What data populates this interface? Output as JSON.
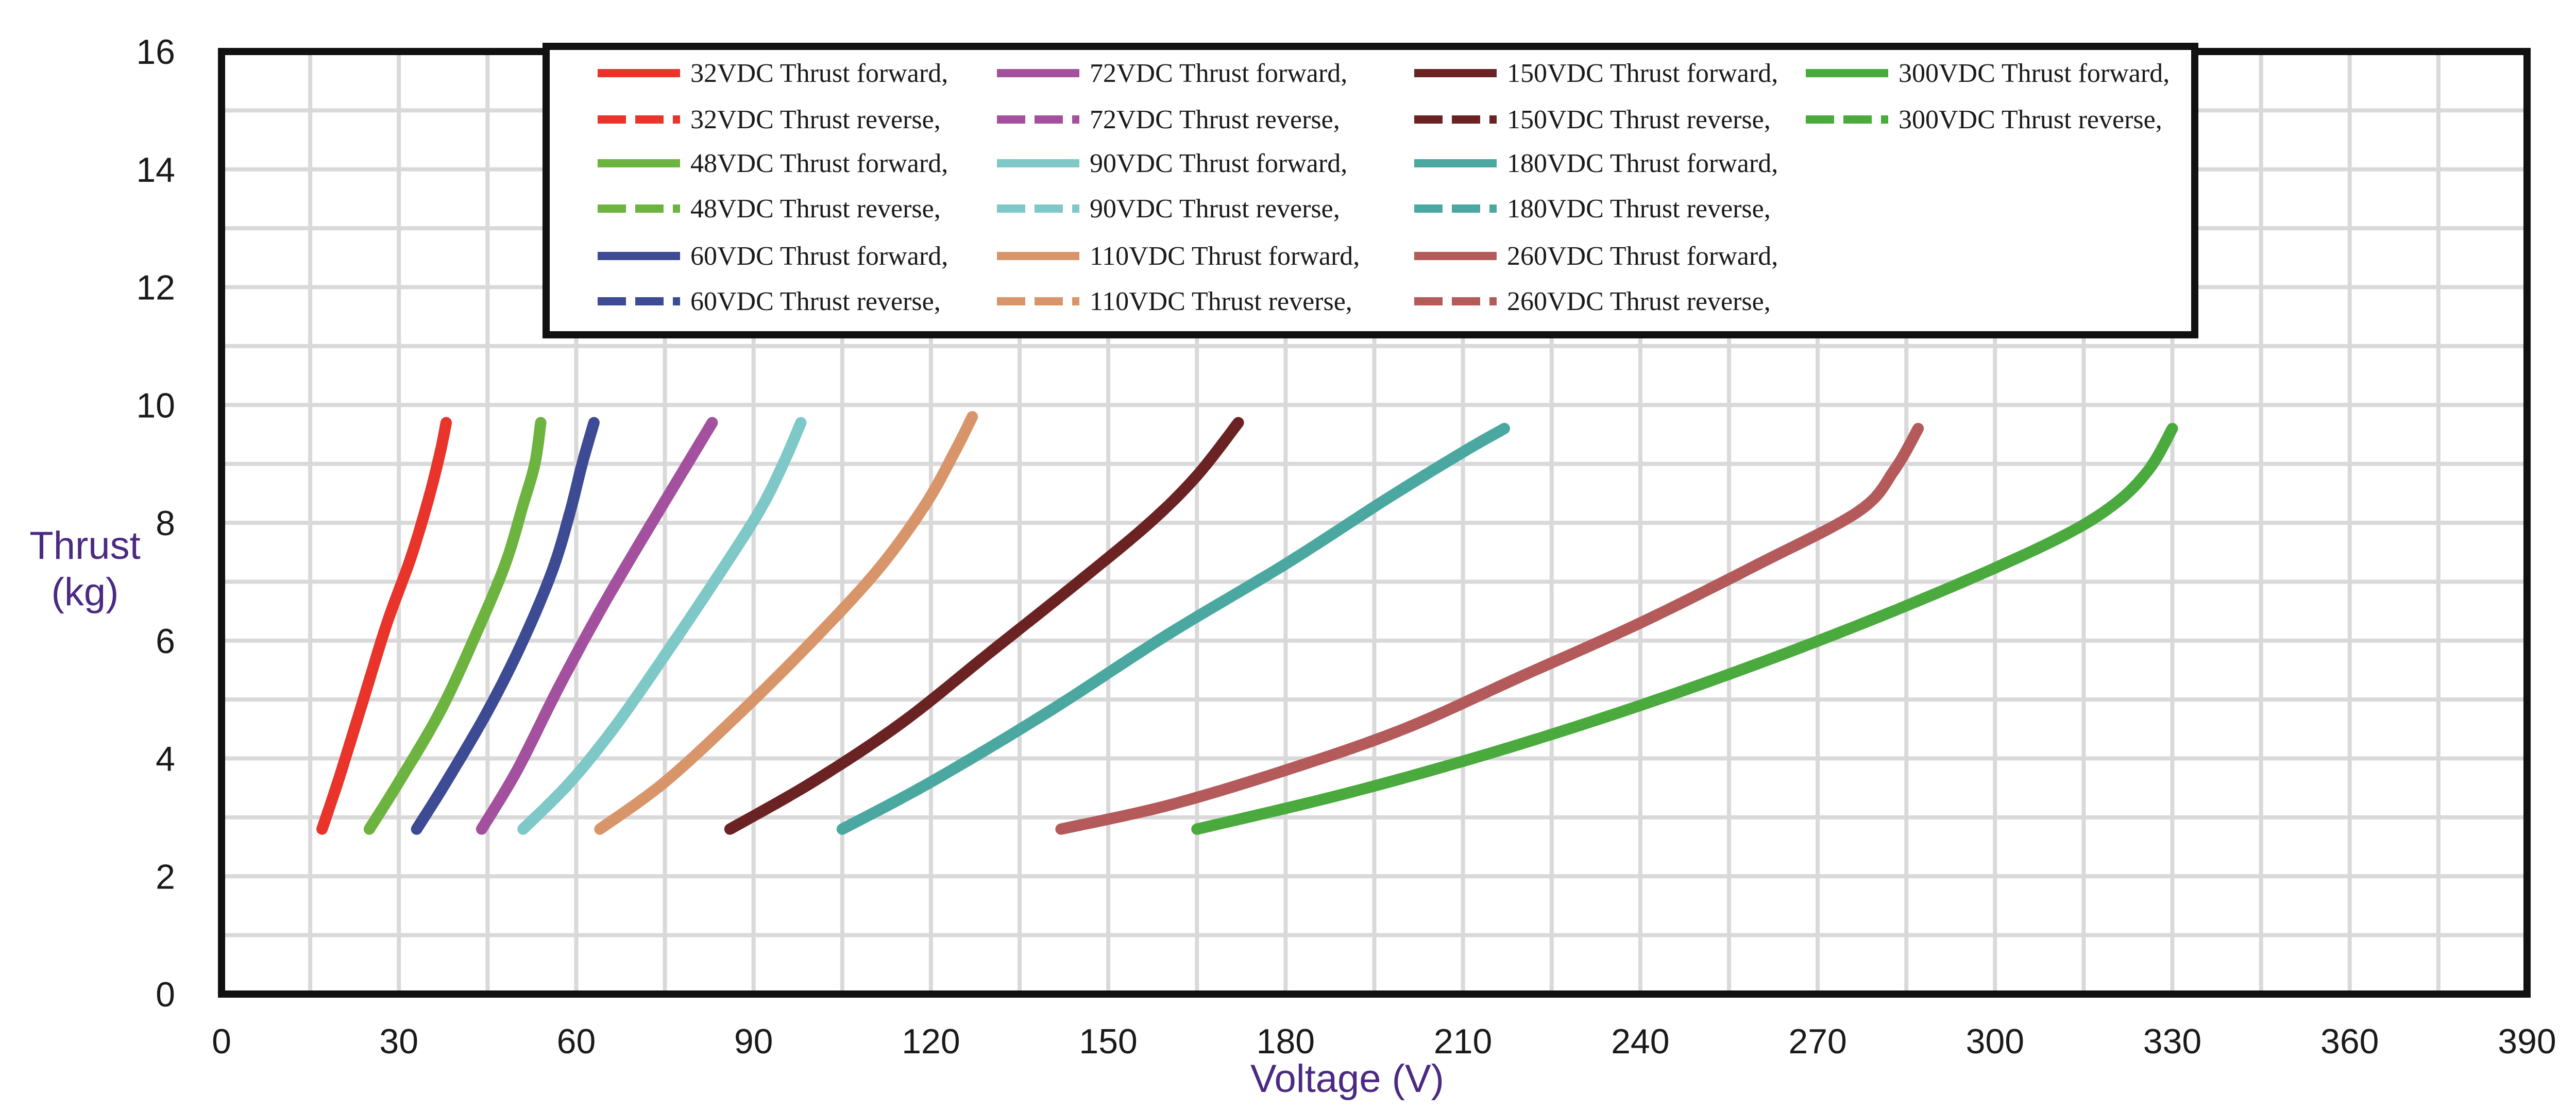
{
  "chart_data": {
    "type": "line",
    "title": "",
    "xlabel": "Voltage (V)",
    "ylabel": [
      "Thrust",
      "(kg)"
    ],
    "xlim": [
      0,
      390
    ],
    "ylim": [
      0,
      16
    ],
    "xticks": [
      "0",
      "30",
      "60",
      "90",
      "120",
      "150",
      "180",
      "210",
      "240",
      "270",
      "300",
      "330",
      "360",
      "390"
    ],
    "yticks": [
      "0",
      "2",
      "4",
      "6",
      "8",
      "10",
      "12",
      "14",
      "16"
    ],
    "grid": true,
    "legend_position": "top-center",
    "series": [
      {
        "name": "32VDC",
        "color": "#e8342a",
        "forward_label": "32VDC Thrust forward,",
        "reverse_label": "32VDC Thrust reverse,",
        "points": [
          [
            17,
            2.8
          ],
          [
            20,
            3.7
          ],
          [
            24,
            5.0
          ],
          [
            28,
            6.3
          ],
          [
            32,
            7.4
          ],
          [
            35,
            8.4
          ],
          [
            37,
            9.2
          ],
          [
            38,
            9.7
          ]
        ]
      },
      {
        "name": "48VDC",
        "color": "#6db33f",
        "forward_label": "48VDC Thrust forward,",
        "reverse_label": "48VDC Thrust reverse,",
        "points": [
          [
            25,
            2.8
          ],
          [
            30,
            3.6
          ],
          [
            37,
            4.8
          ],
          [
            43,
            6.1
          ],
          [
            48,
            7.3
          ],
          [
            51,
            8.3
          ],
          [
            53,
            9.0
          ],
          [
            54,
            9.7
          ]
        ]
      },
      {
        "name": "60VDC",
        "color": "#3d4a94",
        "forward_label": "60VDC Thrust forward,",
        "reverse_label": "60VDC Thrust reverse,",
        "points": [
          [
            33,
            2.8
          ],
          [
            38,
            3.6
          ],
          [
            45,
            4.8
          ],
          [
            51,
            6.0
          ],
          [
            56,
            7.2
          ],
          [
            59,
            8.2
          ],
          [
            61,
            9.0
          ],
          [
            63,
            9.7
          ]
        ]
      },
      {
        "name": "72VDC",
        "color": "#a3519e",
        "forward_label": "72VDC   Thrust forward,",
        "reverse_label": "72VDC   Thrust reverse,",
        "points": [
          [
            44,
            2.8
          ],
          [
            50,
            3.8
          ],
          [
            57,
            5.2
          ],
          [
            64,
            6.5
          ],
          [
            71,
            7.7
          ],
          [
            77,
            8.7
          ],
          [
            83,
            9.7
          ]
        ]
      },
      {
        "name": "90VDC",
        "color": "#7ec8c8",
        "forward_label": "90VDC   Thrust forward,",
        "reverse_label": "90VDC   Thrust reverse,",
        "points": [
          [
            51,
            2.8
          ],
          [
            59,
            3.6
          ],
          [
            67,
            4.6
          ],
          [
            76,
            5.9
          ],
          [
            84,
            7.1
          ],
          [
            91,
            8.2
          ],
          [
            95,
            9.0
          ],
          [
            98,
            9.7
          ]
        ]
      },
      {
        "name": "110VDC",
        "color": "#d9956a",
        "forward_label": "110VDC Thrust forward,",
        "reverse_label": "110VDC Thrust reverse,",
        "points": [
          [
            64,
            2.8
          ],
          [
            75,
            3.6
          ],
          [
            88,
            4.8
          ],
          [
            100,
            6.0
          ],
          [
            111,
            7.2
          ],
          [
            119,
            8.3
          ],
          [
            124,
            9.2
          ],
          [
            127,
            9.8
          ]
        ]
      },
      {
        "name": "150VDC",
        "color": "#6b2222",
        "forward_label": "150VDC Thrust forward,",
        "reverse_label": "150VDC Thrust reverse,",
        "points": [
          [
            86,
            2.8
          ],
          [
            100,
            3.6
          ],
          [
            115,
            4.6
          ],
          [
            130,
            5.8
          ],
          [
            145,
            7.0
          ],
          [
            157,
            8.0
          ],
          [
            165,
            8.8
          ],
          [
            172,
            9.7
          ]
        ]
      },
      {
        "name": "180VDC",
        "color": "#4aa8a0",
        "forward_label": "180VDC Thrust forward,",
        "reverse_label": "180VDC Thrust reverse,",
        "points": [
          [
            105,
            2.8
          ],
          [
            120,
            3.6
          ],
          [
            140,
            4.8
          ],
          [
            160,
            6.1
          ],
          [
            180,
            7.3
          ],
          [
            197,
            8.4
          ],
          [
            210,
            9.2
          ],
          [
            217,
            9.6
          ]
        ]
      },
      {
        "name": "260VDC",
        "color": "#b45a5a",
        "forward_label": "260VDC Thrust forward,",
        "reverse_label": "260VDC Thrust reverse,",
        "points": [
          [
            142,
            2.8
          ],
          [
            160,
            3.2
          ],
          [
            180,
            3.8
          ],
          [
            200,
            4.5
          ],
          [
            220,
            5.4
          ],
          [
            240,
            6.3
          ],
          [
            260,
            7.3
          ],
          [
            277,
            8.2
          ],
          [
            283,
            8.9
          ],
          [
            287,
            9.6
          ]
        ]
      },
      {
        "name": "300VDC",
        "color": "#4aaa3d",
        "forward_label": "300VDC Thrust forward,",
        "reverse_label": "300VDC Thrust reverse,",
        "points": [
          [
            165,
            2.8
          ],
          [
            190,
            3.4
          ],
          [
            215,
            4.1
          ],
          [
            240,
            4.9
          ],
          [
            265,
            5.8
          ],
          [
            290,
            6.8
          ],
          [
            310,
            7.7
          ],
          [
            320,
            8.3
          ],
          [
            326,
            8.9
          ],
          [
            330,
            9.6
          ]
        ]
      }
    ]
  }
}
